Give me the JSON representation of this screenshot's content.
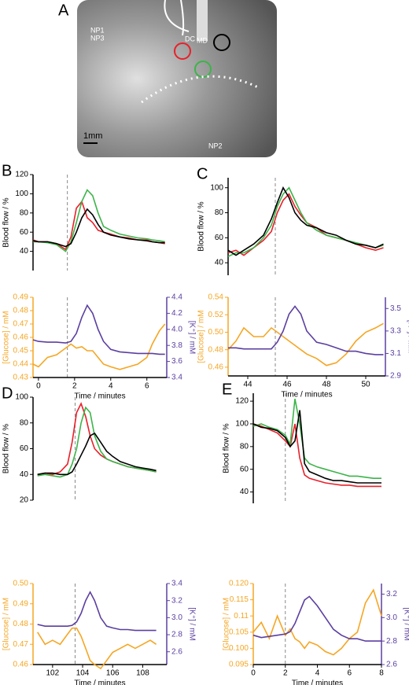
{
  "image": {
    "panel_label": "A",
    "labels": [
      "NP1",
      "NP3",
      "DC",
      "MD",
      "NP2"
    ],
    "scale_label": "1mm"
  },
  "chart_data": [
    {
      "type": "line",
      "panel_label": "B",
      "ylabel": "Blood flow / %",
      "xlim": [
        -0.3,
        7.1
      ],
      "ylim": [
        20,
        120
      ],
      "yticks": [
        40,
        60,
        80,
        100,
        120
      ],
      "vline": 1.6,
      "x": [
        -0.3,
        0,
        0.5,
        1,
        1.5,
        1.8,
        2.1,
        2.4,
        2.7,
        3,
        3.3,
        3.6,
        4,
        4.5,
        5,
        5.5,
        6,
        6.3,
        6.7,
        7.0
      ],
      "series": [
        {
          "color": "#e8202a",
          "values": [
            52,
            50,
            50,
            48,
            42,
            55,
            85,
            92,
            75,
            70,
            62,
            60,
            58,
            55,
            54,
            52,
            52,
            50,
            49,
            48
          ]
        },
        {
          "color": "#3cb44a",
          "values": [
            50,
            50,
            49,
            47,
            40,
            50,
            70,
            92,
            104,
            98,
            80,
            66,
            62,
            58,
            56,
            54,
            53,
            52,
            51,
            50
          ]
        },
        {
          "color": "#000000",
          "values": [
            51,
            50,
            50,
            48,
            45,
            48,
            60,
            75,
            84,
            78,
            68,
            60,
            57,
            55,
            53,
            52,
            51,
            50,
            49,
            49
          ]
        }
      ]
    },
    {
      "type": "line",
      "ylabel": "[Glucose] / mM",
      "y2label": "[K⁺] / mM",
      "xlabel": "Time / minutes",
      "xlim": [
        -0.3,
        7.1
      ],
      "xticks": [
        0,
        2,
        4,
        6
      ],
      "ylim": [
        0.43,
        0.49
      ],
      "yticks": [
        0.43,
        0.44,
        0.45,
        0.46,
        0.47,
        0.48,
        0.49
      ],
      "y2lim": [
        3.4,
        4.4
      ],
      "y2ticks": [
        3.4,
        3.6,
        3.8,
        {
          "value": 4,
          "label": "4.0"
        },
        4.2,
        4.4
      ],
      "vline": 1.6,
      "x": [
        -0.3,
        0,
        0.5,
        1,
        1.5,
        1.8,
        2.1,
        2.4,
        2.7,
        3,
        3.3,
        3.6,
        4,
        4.5,
        5,
        5.5,
        6,
        6.3,
        6.7,
        7.0
      ],
      "series": [
        {
          "color": "#f5a623",
          "values": [
            0.44,
            0.438,
            0.445,
            0.447,
            0.452,
            0.455,
            0.452,
            0.453,
            0.45,
            0.45,
            0.445,
            0.44,
            0.438,
            0.436,
            0.438,
            0.44,
            0.445,
            0.455,
            0.465,
            0.47
          ]
        },
        {
          "color": "#5b3fa0",
          "axis": "y2",
          "values": [
            3.87,
            3.85,
            3.84,
            3.84,
            3.83,
            3.85,
            3.95,
            4.15,
            4.3,
            4.2,
            4.0,
            3.85,
            3.75,
            3.72,
            3.71,
            3.7,
            3.7,
            3.7,
            3.69,
            3.69
          ]
        }
      ]
    },
    {
      "type": "line",
      "panel_label": "C",
      "ylabel": "Blood flow / %",
      "xlim": [
        43,
        51
      ],
      "ylim": [
        30,
        108
      ],
      "yticks": [
        40,
        60,
        80,
        100
      ],
      "vline": 45.4,
      "x": [
        43,
        43.4,
        43.8,
        44.3,
        44.8,
        45.2,
        45.5,
        45.8,
        46.1,
        46.4,
        46.7,
        47,
        47.5,
        48,
        48.5,
        49,
        49.5,
        50,
        50.5,
        50.9
      ],
      "series": [
        {
          "color": "#e8202a",
          "values": [
            48,
            50,
            46,
            52,
            58,
            65,
            80,
            90,
            95,
            85,
            78,
            72,
            68,
            62,
            60,
            58,
            55,
            52,
            50,
            52
          ]
        },
        {
          "color": "#3cb44a",
          "values": [
            45,
            48,
            48,
            52,
            60,
            70,
            85,
            95,
            100,
            90,
            80,
            72,
            66,
            62,
            60,
            58,
            56,
            54,
            52,
            54
          ]
        },
        {
          "color": "#000000",
          "values": [
            50,
            46,
            50,
            55,
            62,
            75,
            88,
            100,
            92,
            80,
            74,
            70,
            68,
            64,
            62,
            58,
            55,
            54,
            52,
            55
          ]
        }
      ]
    },
    {
      "type": "line",
      "ylabel": "[Glucose] / mM",
      "y2label": "[K⁺] / mM",
      "xlabel": "Time / minutes",
      "xlim": [
        43,
        51
      ],
      "xticks": [
        44,
        46,
        48,
        50
      ],
      "ylim": [
        0.45,
        0.54
      ],
      "yticks": [
        0.46,
        0.48,
        {
          "value": 0.5,
          "label": "0.50"
        },
        0.52,
        0.54
      ],
      "y2lim": [
        2.9,
        3.6
      ],
      "y2ticks": [
        2.9,
        3.1,
        3.3,
        3.5
      ],
      "vline": 45.4,
      "x": [
        43,
        43.4,
        43.8,
        44.3,
        44.8,
        45.2,
        45.5,
        45.8,
        46.1,
        46.4,
        46.7,
        47,
        47.5,
        48,
        48.5,
        49,
        49.5,
        50,
        50.5,
        50.9
      ],
      "series": [
        {
          "color": "#f5a623",
          "values": [
            0.48,
            0.49,
            0.505,
            0.495,
            0.495,
            0.505,
            0.5,
            0.495,
            0.49,
            0.485,
            0.48,
            0.475,
            0.47,
            0.462,
            0.465,
            0.475,
            0.49,
            0.5,
            0.505,
            0.51
          ]
        },
        {
          "color": "#5b3fa0",
          "axis": "y2",
          "values": [
            3.15,
            3.15,
            3.14,
            3.14,
            3.14,
            3.14,
            3.2,
            3.3,
            3.45,
            3.52,
            3.45,
            3.3,
            3.2,
            3.18,
            3.15,
            3.12,
            3.12,
            3.1,
            3.09,
            3.09
          ]
        }
      ]
    },
    {
      "type": "line",
      "panel_label": "D",
      "ylabel": "Blood flow / %",
      "xlim": [
        100.7,
        109.6
      ],
      "ylim": [
        20,
        100
      ],
      "yticks": [
        20,
        40,
        60,
        80,
        100
      ],
      "vline": 103.5,
      "x": [
        101,
        101.5,
        102,
        102.5,
        103,
        103.3,
        103.6,
        103.9,
        104.2,
        104.5,
        104.8,
        105.2,
        105.6,
        106,
        106.5,
        107,
        107.5,
        108,
        108.5,
        108.9
      ],
      "series": [
        {
          "color": "#e8202a",
          "values": [
            40,
            41,
            40,
            42,
            48,
            65,
            88,
            95,
            85,
            70,
            60,
            55,
            52,
            50,
            48,
            46,
            45,
            44,
            43,
            42
          ]
        },
        {
          "color": "#3cb44a",
          "values": [
            39,
            40,
            39,
            38,
            40,
            48,
            60,
            80,
            92,
            88,
            70,
            58,
            52,
            50,
            48,
            46,
            45,
            44,
            43,
            42
          ]
        },
        {
          "color": "#000000",
          "values": [
            40,
            41,
            41,
            40,
            40,
            42,
            48,
            55,
            62,
            70,
            72,
            65,
            58,
            54,
            50,
            48,
            46,
            45,
            44,
            43
          ]
        }
      ]
    },
    {
      "type": "line",
      "ylabel": "[Glucose] / mM",
      "y2label": "[K⁺] / mM",
      "xlabel": "Time / minutes",
      "xlim": [
        100.7,
        109.6
      ],
      "xticks": [
        102,
        104,
        106,
        108
      ],
      "ylim": [
        0.46,
        0.5
      ],
      "yticks": [
        0.46,
        0.47,
        0.48,
        0.49,
        {
          "value": 0.5,
          "label": "0.50"
        }
      ],
      "y2lim": [
        2.45,
        3.4
      ],
      "y2ticks": [
        2.6,
        2.8,
        {
          "value": 3,
          "label": "3.0"
        },
        3.2,
        3.4
      ],
      "vline": 103.5,
      "x": [
        101,
        101.5,
        102,
        102.5,
        103,
        103.3,
        103.6,
        103.9,
        104.2,
        104.5,
        104.8,
        105.2,
        105.6,
        106,
        106.5,
        107,
        107.5,
        108,
        108.5,
        108.9
      ],
      "series": [
        {
          "color": "#f5a623",
          "values": [
            0.476,
            0.47,
            0.472,
            0.47,
            0.475,
            0.478,
            0.478,
            0.474,
            0.468,
            0.462,
            0.46,
            0.458,
            0.462,
            0.466,
            0.468,
            0.47,
            0.468,
            0.47,
            0.472,
            0.47
          ]
        },
        {
          "color": "#5b3fa0",
          "axis": "y2",
          "values": [
            2.92,
            2.9,
            2.9,
            2.9,
            2.9,
            2.91,
            2.95,
            3.05,
            3.2,
            3.3,
            3.2,
            3.0,
            2.9,
            2.88,
            2.86,
            2.86,
            2.85,
            2.85,
            2.85,
            2.85
          ]
        }
      ]
    },
    {
      "type": "line",
      "panel_label": "E",
      "ylabel": "Blood flow / %",
      "xlim": [
        0,
        8
      ],
      "ylim": [
        30,
        127
      ],
      "yticks": [
        40,
        60,
        80,
        100,
        120
      ],
      "vline": 2,
      "x": [
        0,
        0.5,
        1,
        1.5,
        2,
        2.3,
        2.6,
        2.9,
        3.2,
        3.5,
        4,
        4.5,
        5,
        5.5,
        6,
        6.5,
        7,
        7.5,
        8
      ],
      "series": [
        {
          "color": "#e8202a",
          "values": [
            100,
            98,
            95,
            92,
            85,
            80,
            100,
            70,
            55,
            52,
            50,
            48,
            47,
            46,
            46,
            45,
            45,
            45,
            45
          ]
        },
        {
          "color": "#3cb44a",
          "values": [
            98,
            100,
            97,
            95,
            90,
            82,
            122,
            100,
            70,
            65,
            62,
            60,
            58,
            56,
            54,
            54,
            53,
            52,
            52
          ]
        },
        {
          "color": "#000000",
          "values": [
            100,
            97,
            96,
            94,
            88,
            80,
            85,
            112,
            65,
            58,
            55,
            52,
            50,
            50,
            49,
            48,
            48,
            48,
            48
          ]
        }
      ]
    },
    {
      "type": "line",
      "ylabel": "[Glucose] / mM",
      "y2label": "[K⁺] / mM",
      "xlabel": "Time / minutes",
      "xlim": [
        0,
        8
      ],
      "xticks": [
        0,
        2,
        4,
        6,
        8
      ],
      "ylim": [
        0.095,
        0.12
      ],
      "yticks": [
        0.095,
        {
          "value": 0.1,
          "label": "0.100"
        },
        0.105,
        0.11,
        0.115,
        {
          "value": 0.12,
          "label": "0.120"
        }
      ],
      "y2lim": [
        2.6,
        3.29
      ],
      "y2ticks": [
        2.6,
        2.8,
        {
          "value": 3,
          "label": "3.0"
        },
        3.2
      ],
      "vline": 2,
      "x": [
        0,
        0.5,
        1,
        1.5,
        2,
        2.3,
        2.6,
        2.9,
        3.2,
        3.5,
        4,
        4.5,
        5,
        5.5,
        6,
        6.5,
        7,
        7.5,
        8
      ],
      "series": [
        {
          "color": "#f5a623",
          "values": [
            0.105,
            0.108,
            0.103,
            0.11,
            0.104,
            0.106,
            0.103,
            0.102,
            0.1,
            0.102,
            0.101,
            0.099,
            0.098,
            0.1,
            0.103,
            0.105,
            0.114,
            0.118,
            0.11
          ]
        },
        {
          "color": "#5b3fa0",
          "axis": "y2",
          "values": [
            2.85,
            2.83,
            2.84,
            2.85,
            2.86,
            2.88,
            2.95,
            3.05,
            3.15,
            3.18,
            3.1,
            3.0,
            2.9,
            2.85,
            2.82,
            2.82,
            2.8,
            2.8,
            2.8
          ]
        }
      ]
    }
  ]
}
